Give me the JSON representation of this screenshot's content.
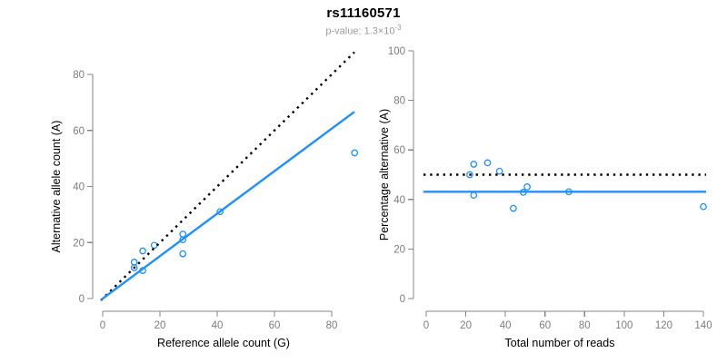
{
  "header": {
    "title": "rs11160571",
    "subtitle_label": "p-value: ",
    "subtitle_mantissa": "1.3×10",
    "subtitle_exponent": "-3"
  },
  "colors": {
    "accent_blue": "#1e90ff",
    "dotted_black": "#000000",
    "axis": "#878787",
    "tick_label": "#7d7d7d",
    "axis_title": "#000000",
    "subtitle_gray": "#9b9b9b",
    "background": "#ffffff"
  },
  "chart_data": [
    {
      "id": "allele-count-scatter",
      "type": "scatter",
      "xlabel": "Reference allele count (G)",
      "ylabel": "Alternative allele count (A)",
      "xticks": [
        0,
        20,
        40,
        60,
        80
      ],
      "yticks": [
        0,
        20,
        40,
        60,
        80
      ],
      "xlim": [
        0,
        88
      ],
      "ylim": [
        0,
        88
      ],
      "grid": false,
      "marker": "open-circle",
      "points": [
        [
          11,
          13
        ],
        [
          11,
          11
        ],
        [
          14,
          17
        ],
        [
          14,
          10
        ],
        [
          18,
          19
        ],
        [
          28,
          23
        ],
        [
          28,
          21
        ],
        [
          28,
          16
        ],
        [
          41,
          31
        ],
        [
          88,
          52
        ]
      ],
      "lines": [
        {
          "name": "expected-50pct",
          "style": "dotted",
          "color": "black",
          "slope": 1,
          "intercept": 0
        },
        {
          "name": "observed-ratio",
          "style": "solid",
          "color": "blue",
          "slope": 0.758,
          "intercept": 0
        }
      ]
    },
    {
      "id": "percentage-vs-reads-scatter",
      "type": "scatter",
      "xlabel": "Total number of reads",
      "ylabel": "Percentage alternative (A)",
      "xticks": [
        0,
        20,
        40,
        60,
        80,
        100,
        120,
        140
      ],
      "yticks": [
        0,
        20,
        40,
        60,
        80,
        100
      ],
      "xlim": [
        0,
        140
      ],
      "ylim": [
        0,
        100
      ],
      "grid": false,
      "marker": "open-circle",
      "points": [
        [
          24,
          54.2
        ],
        [
          22,
          50
        ],
        [
          31,
          54.8
        ],
        [
          24,
          41.7
        ],
        [
          37,
          51.4
        ],
        [
          51,
          45.1
        ],
        [
          49,
          42.9
        ],
        [
          44,
          36.4
        ],
        [
          72,
          43.1
        ],
        [
          140,
          37.1
        ]
      ],
      "lines": [
        {
          "name": "expected-50pct",
          "style": "dotted",
          "color": "black",
          "y": 50
        },
        {
          "name": "observed-mean",
          "style": "solid",
          "color": "blue",
          "y": 43.1
        }
      ]
    }
  ]
}
